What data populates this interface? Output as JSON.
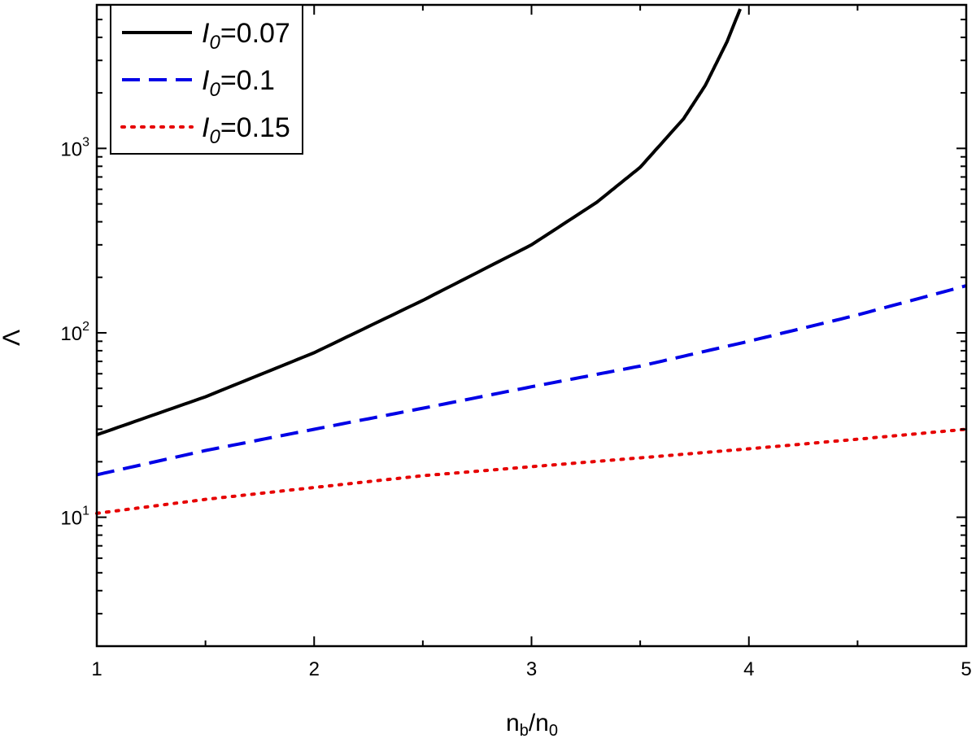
{
  "chart_data": {
    "type": "line",
    "xlabel": {
      "main": "n",
      "sub1": "b",
      "mid": "/n",
      "sub2": "0"
    },
    "ylabel": "Λ",
    "xlim": [
      1,
      5
    ],
    "ylim": [
      2,
      6000
    ],
    "yscale": "log",
    "grid": false,
    "legend_position": "top-left",
    "x_ticks": [
      1,
      2,
      3,
      4,
      5
    ],
    "x_tick_labels": [
      "1",
      "2",
      "3",
      "4",
      "5"
    ],
    "y_ticks": [
      {
        "base": "10",
        "exp": "1",
        "value": 10
      },
      {
        "base": "10",
        "exp": "2",
        "value": 100
      },
      {
        "base": "10",
        "exp": "3",
        "value": 1000
      }
    ],
    "series": [
      {
        "name": {
          "var": "I",
          "sub": "0",
          "rest": "=0.07"
        },
        "color": "#000000",
        "style": "solid",
        "x": [
          1.0,
          1.5,
          2.0,
          2.5,
          3.0,
          3.3,
          3.5,
          3.7,
          3.8,
          3.9,
          3.96
        ],
        "y": [
          28,
          45,
          78,
          150,
          300,
          510,
          790,
          1450,
          2200,
          3800,
          5700
        ]
      },
      {
        "name": {
          "var": "I",
          "sub": "0",
          "rest": "=0.1"
        },
        "color": "#0000e6",
        "style": "dashed",
        "x": [
          1.0,
          1.5,
          2.0,
          2.5,
          3.0,
          3.5,
          4.0,
          4.5,
          5.0
        ],
        "y": [
          17,
          23,
          30,
          39,
          51,
          66,
          90,
          125,
          180
        ]
      },
      {
        "name": {
          "var": "I",
          "sub": "0",
          "rest": "=0.15"
        },
        "color": "#e60000",
        "style": "dotted",
        "x": [
          1.0,
          1.5,
          2.0,
          2.5,
          3.0,
          3.5,
          4.0,
          4.5,
          5.0
        ],
        "y": [
          10.5,
          12.5,
          14.5,
          16.8,
          18.8,
          21.0,
          23.5,
          26.5,
          30.0
        ]
      }
    ]
  }
}
